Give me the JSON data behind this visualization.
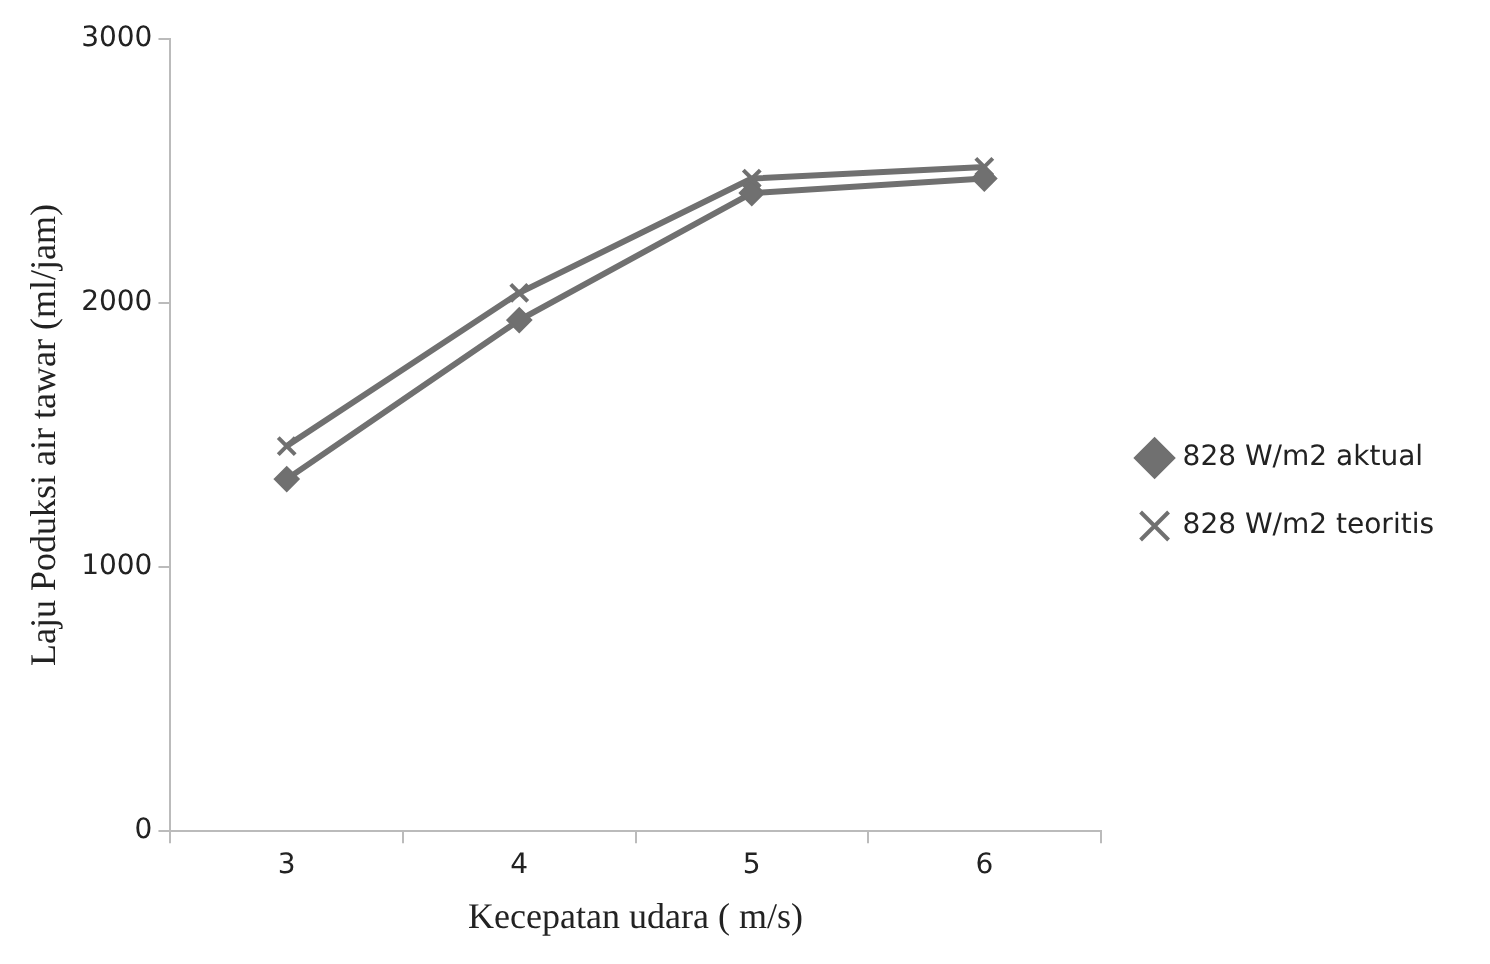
{
  "chart_data": {
    "type": "line",
    "xlabel": "Kecepatan udara ( m/s)",
    "ylabel": "Laju Poduksi air tawar (ml/jam)",
    "categories": [
      "3",
      "4",
      "5",
      "6"
    ],
    "series": [
      {
        "name": "828 W/m2 aktual",
        "color": "#707070",
        "marker": "diamond",
        "values": [
          1333,
          1935,
          2416,
          2471
        ]
      },
      {
        "name": "828 W/m2 teoritis",
        "color": "#707070",
        "marker": "cross",
        "values": [
          1458,
          2038,
          2471,
          2515
        ]
      }
    ],
    "ylim": [
      0,
      3000
    ],
    "yticks": [
      0,
      1000,
      2000,
      3000
    ],
    "grid": false,
    "legend": "right",
    "line_style": "solid"
  }
}
